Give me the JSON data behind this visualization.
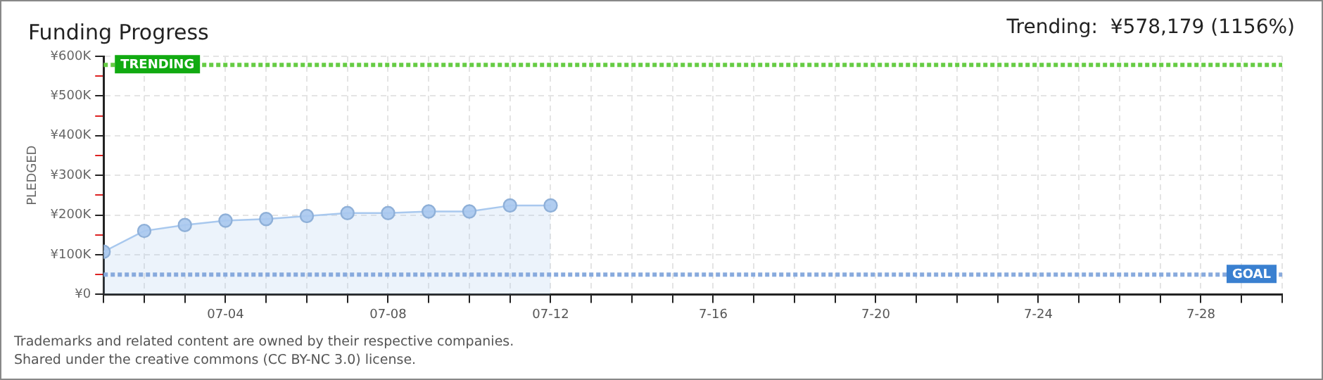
{
  "chart_data": {
    "type": "area",
    "title": "Funding Progress",
    "subtitle": "Trending:  ¥578,179 (1156%)",
    "ylabel": "PLEDGED",
    "x": [
      "--07-01",
      "--07-02",
      "--07-03",
      "--07-04",
      "--07-05",
      "--07-06",
      "--07-07",
      "--07-08",
      "--07-09",
      "--07-10",
      "--07-11",
      "--07-12"
    ],
    "series": [
      {
        "color": "#a8c8ee",
        "values": [
          107500,
          160000,
          175000,
          186000,
          190000,
          197500,
          205000,
          205000,
          209000,
          209000,
          224000,
          224000
        ]
      }
    ],
    "xlim": [
      "--07-01",
      "--07-30"
    ],
    "xticks": [
      {
        "value": "--07-01",
        "label": null
      },
      {
        "value": "--07-02",
        "label": null
      },
      {
        "value": "--07-03",
        "label": null
      },
      {
        "value": "--07-04",
        "label": "07-04"
      },
      {
        "value": "--07-05",
        "label": null
      },
      {
        "value": "--07-06",
        "label": null
      },
      {
        "value": "--07-07",
        "label": null
      },
      {
        "value": "--07-08",
        "label": "07-08"
      },
      {
        "value": "--07-09",
        "label": null
      },
      {
        "value": "--07-10",
        "label": null
      },
      {
        "value": "--07-11",
        "label": null
      },
      {
        "value": "--07-12",
        "label": "07-12"
      },
      {
        "value": "--07-13",
        "label": null
      },
      {
        "value": "--07-14",
        "label": null
      },
      {
        "value": "--07-15",
        "label": null
      },
      {
        "value": "--07-16",
        "label": "7-16"
      },
      {
        "value": "--07-17",
        "label": null
      },
      {
        "value": "--07-18",
        "label": null
      },
      {
        "value": "--07-19",
        "label": null
      },
      {
        "value": "--07-20",
        "label": "7-20"
      },
      {
        "value": "--07-21",
        "label": null
      },
      {
        "value": "--07-22",
        "label": null
      },
      {
        "value": "--07-23",
        "label": null
      },
      {
        "value": "--07-24",
        "label": "7-24"
      },
      {
        "value": "--07-25",
        "label": null
      },
      {
        "value": "--07-26",
        "label": null
      },
      {
        "value": "--07-27",
        "label": null
      },
      {
        "value": "--07-28",
        "label": "7-28"
      },
      {
        "value": "--07-29",
        "label": null
      },
      {
        "value": "--07-30",
        "label": null
      }
    ],
    "ylim": [
      0,
      600000
    ],
    "yticks": [
      {
        "value": 0,
        "label": "¥0"
      },
      {
        "value": 50000,
        "label": null
      },
      {
        "value": 100000,
        "label": "¥100K"
      },
      {
        "value": 150000,
        "label": null
      },
      {
        "value": 200000,
        "label": "¥200K"
      },
      {
        "value": 250000,
        "label": null
      },
      {
        "value": 300000,
        "label": "¥300K"
      },
      {
        "value": 350000,
        "label": null
      },
      {
        "value": 400000,
        "label": "¥400K"
      },
      {
        "value": 450000,
        "label": null
      },
      {
        "value": 500000,
        "label": "¥500K"
      },
      {
        "value": 550000,
        "label": null
      },
      {
        "value": 600000,
        "label": "¥600K"
      }
    ],
    "ref_lines": [
      {
        "axis": "y",
        "value": 578179,
        "label": "TRENDING",
        "color": "#66cc44",
        "line_style": "dotted"
      },
      {
        "axis": "y",
        "value": 50000,
        "label": "GOAL",
        "color": "#88aadd",
        "line_style": "dotted"
      }
    ],
    "annotations": [
      "Trademarks and related content are owned by their respective companies.",
      "Shared under the creative commons (CC BY-NC 3.0) license."
    ],
    "grid": true,
    "marker": "circle",
    "legend": false
  }
}
